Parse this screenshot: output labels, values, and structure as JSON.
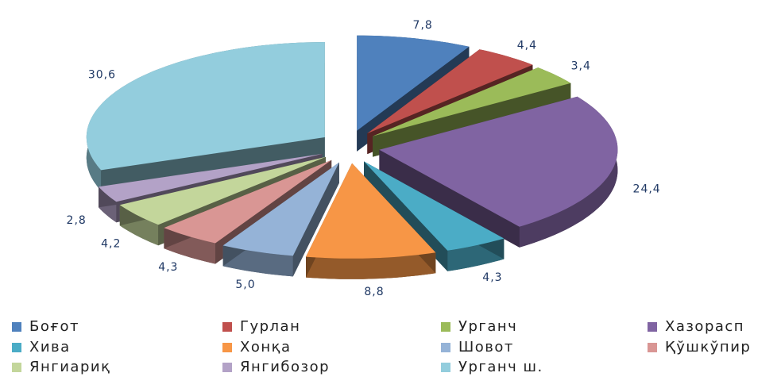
{
  "chart_data": {
    "type": "pie",
    "categories": [
      "Боғот",
      "Гурлан",
      "Урганч",
      "Хазорасп",
      "Хива",
      "Хонқа",
      "Шовот",
      "Қўшкўпир",
      "Янгиариқ",
      "Янгибозор",
      "Урганч ш."
    ],
    "values": [
      7.8,
      4.4,
      3.4,
      24.4,
      4.3,
      8.8,
      5.0,
      4.3,
      4.2,
      2.8,
      30.6
    ],
    "value_labels": [
      "7,8",
      "4,4",
      "3,4",
      "24,4",
      "4,3",
      "8,8",
      "5,0",
      "4,3",
      "4,2",
      "2,8",
      "30,6"
    ],
    "colors": [
      "#4f81bd",
      "#c0504d",
      "#9bbb59",
      "#8064a2",
      "#4bacc6",
      "#f79646",
      "#95b3d7",
      "#d99694",
      "#c3d69b",
      "#b3a2c7",
      "#93cddd"
    ],
    "legend": "bottom"
  }
}
